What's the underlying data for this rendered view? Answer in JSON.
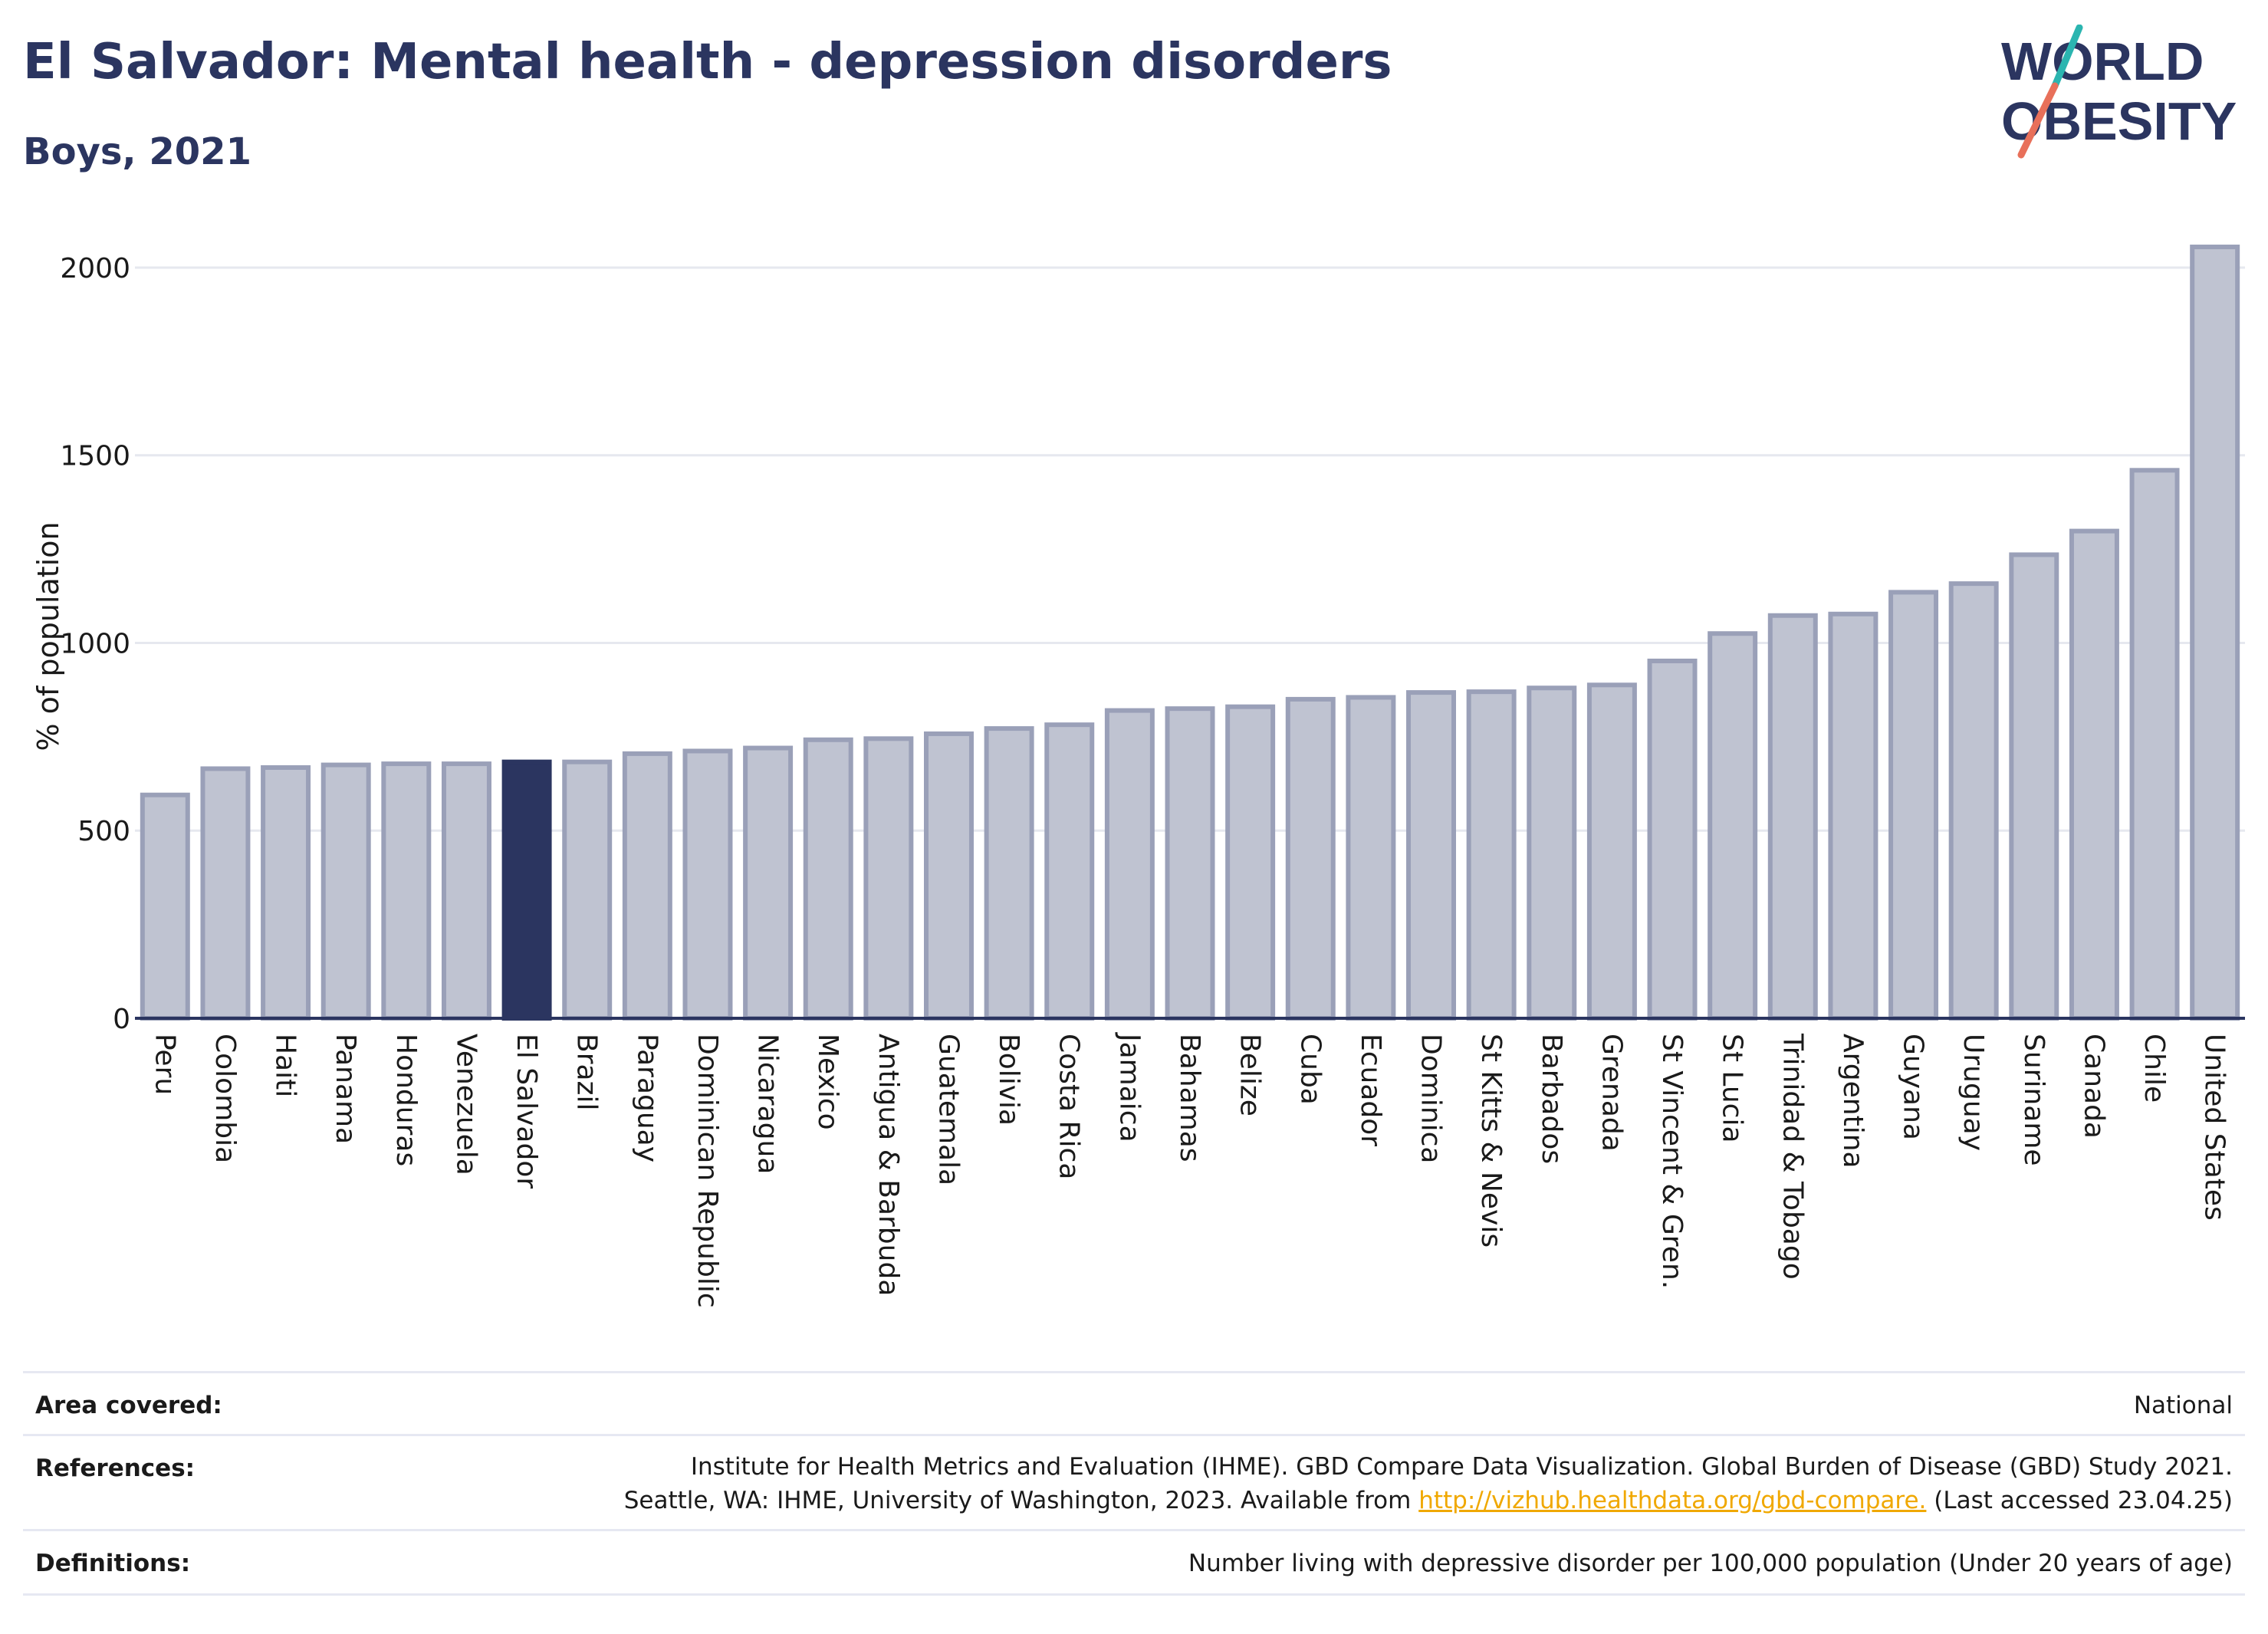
{
  "header": {
    "title": "El Salvador: Mental health - depression disorders",
    "subtitle": "Boys, 2021"
  },
  "logo": {
    "line1": "WORLD",
    "line2": "OBESITY",
    "colors": {
      "text": "#2b3560",
      "slash_top": "#2bb5b0",
      "slash_bottom": "#e8705a"
    }
  },
  "chart_data": {
    "type": "bar",
    "ylabel": "% of population",
    "ylim": [
      0,
      2100
    ],
    "yticks": [
      0,
      500,
      1000,
      1500,
      2000
    ],
    "grid": true,
    "highlight": "El Salvador",
    "colors": {
      "bar": "#bfc3d1",
      "bar_border": "#9aa0b8",
      "highlight": "#2b3560",
      "grid": "#e6e8ef",
      "axis": "#2b3560"
    },
    "categories": [
      "Peru",
      "Colombia",
      "Haiti",
      "Panama",
      "Honduras",
      "Venezuela",
      "El Salvador",
      "Brazil",
      "Paraguay",
      "Dominican Republic",
      "Nicaragua",
      "Mexico",
      "Antigua & Barbuda",
      "Guatemala",
      "Bolivia",
      "Costa Rica",
      "Jamaica",
      "Bahamas",
      "Belize",
      "Cuba",
      "Ecuador",
      "Dominica",
      "St Kitts & Nevis",
      "Barbados",
      "Grenada",
      "St Vincent & Gren.",
      "St Lucia",
      "Trinidad & Tobago",
      "Argentina",
      "Guyana",
      "Uruguay",
      "Suriname",
      "Canada",
      "Chile",
      "United States"
    ],
    "values": [
      595,
      665,
      668,
      675,
      678,
      678,
      683,
      683,
      705,
      712,
      720,
      742,
      745,
      758,
      772,
      782,
      820,
      825,
      830,
      850,
      855,
      868,
      870,
      880,
      888,
      952,
      1025,
      1073,
      1077,
      1135,
      1158,
      1235,
      1298,
      1460,
      2055
    ]
  },
  "footer": {
    "area_label": "Area covered:",
    "area_value": "National",
    "references_label": "References:",
    "references_line1": "Institute for Health Metrics and Evaluation (IHME). GBD Compare Data Visualization. Global Burden of Disease (GBD) Study 2021.",
    "references_line2_pre": "Seattle, WA: IHME, University of Washington, 2023. Available from ",
    "references_link": "http://vizhub.healthdata.org/gbd-compare.",
    "references_line2_post": " (Last accessed 23.04.25)",
    "definitions_label": "Definitions:",
    "definitions_value": "Number living with depressive disorder per 100,000 population (Under 20 years of age)"
  }
}
